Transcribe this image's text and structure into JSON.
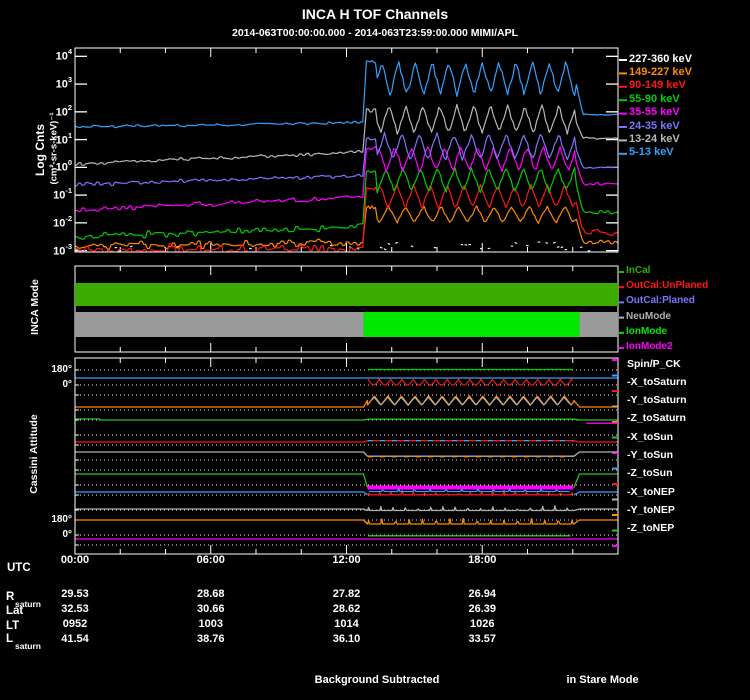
{
  "title": "INCA H TOF Channels",
  "subtitle": "2014-063T00:00:00.000 - 2014-063T23:59:00.000 MIMI/APL",
  "footer": {
    "left": "Background Subtracted",
    "right": "in Stare Mode"
  },
  "utc": {
    "label": "UTC",
    "ticks": [
      "00:00",
      "06:00",
      "12:00",
      "18:00"
    ]
  },
  "table": {
    "rows": [
      {
        "label": "R",
        "sub": "saturn",
        "values": [
          "29.53",
          "28.68",
          "27.82",
          "26.94"
        ]
      },
      {
        "label": "Lat",
        "sub": "",
        "values": [
          "32.53",
          "30.66",
          "28.62",
          "26.39"
        ]
      },
      {
        "label": "LT",
        "sub": "",
        "values": [
          "0952",
          "1003",
          "1014",
          "1026"
        ]
      },
      {
        "label": "L",
        "sub": "saturn",
        "values": [
          "41.54",
          "38.76",
          "36.10",
          "33.57"
        ]
      }
    ]
  },
  "chart_data": {
    "type": "line",
    "title": "INCA H TOF Channels",
    "x": {
      "unit": "hours",
      "range": [
        0,
        24
      ],
      "ticks": [
        0,
        6,
        12,
        18
      ],
      "tick_labels": [
        "00:00",
        "06:00",
        "12:00",
        "18:00"
      ]
    },
    "active_interval_hours": [
      12.75,
      22.1
    ],
    "tof_panel": {
      "ylabel": "Log Cnts",
      "ylabel_units": "(cm²-sr-s-keV)⁻¹",
      "ytick_exponents": [
        4,
        3,
        2,
        1,
        0,
        -1,
        -2,
        -3
      ],
      "ylim_log10": [
        -3.05,
        4.3
      ],
      "series": [
        {
          "label": "227-360 keV",
          "color": "#ffffff",
          "style": "sparse",
          "quiet_log10": [
            -3.0,
            -2.95
          ],
          "onset_log10": -2.8,
          "active_log10": -2.85,
          "active_amp": 0.15,
          "post_log10": -3.0,
          "jitter": 0.12,
          "period_h": 0.75,
          "seed": 11
        },
        {
          "label": "149-227 keV",
          "color": "#ff8a00",
          "style": "line",
          "quiet_log10": [
            -2.85,
            -2.7
          ],
          "onset_log10": -1.45,
          "active_log10": -1.7,
          "active_amp": 0.3,
          "post_log10": -2.7,
          "jitter": 0.17,
          "period_h": 0.78,
          "seed": 22
        },
        {
          "label": "90-149 keV",
          "color": "#ff1515",
          "style": "line",
          "quiet_log10": [
            -3.0,
            -2.9
          ],
          "onset_log10": -0.75,
          "active_log10": -1.05,
          "active_amp": 0.42,
          "post_log10": -2.35,
          "jitter": 0.22,
          "period_h": 0.74,
          "seed": 33
        },
        {
          "label": "55-90 keV",
          "color": "#00cc00",
          "style": "line",
          "quiet_log10": [
            -2.5,
            -2.15
          ],
          "onset_log10": -0.15,
          "active_log10": -0.45,
          "active_amp": 0.42,
          "post_log10": -1.6,
          "jitter": 0.14,
          "period_h": 0.76,
          "seed": 44
        },
        {
          "label": "35-55 keV",
          "color": "#ff00ff",
          "style": "line",
          "quiet_log10": [
            -1.55,
            -1.05
          ],
          "onset_log10": 0.7,
          "active_log10": 0.3,
          "active_amp": 0.45,
          "post_log10": -0.6,
          "jitter": 0.1,
          "period_h": 0.73,
          "seed": 55
        },
        {
          "label": "24-35 keV",
          "color": "#7b74ff",
          "style": "line",
          "quiet_log10": [
            -0.62,
            -0.3
          ],
          "onset_log10": 1.05,
          "active_log10": 0.75,
          "active_amp": 0.48,
          "post_log10": 0.0,
          "jitter": 0.08,
          "period_h": 0.77,
          "seed": 66
        },
        {
          "label": "13-24 keV",
          "color": "#b8b8b8",
          "style": "line",
          "quiet_log10": [
            0.12,
            0.55
          ],
          "onset_log10": 2.05,
          "active_log10": 1.72,
          "active_amp": 0.5,
          "post_log10": 1.05,
          "jitter": 0.07,
          "period_h": 0.75,
          "seed": 77
        },
        {
          "label": "5-13 keV",
          "color": "#33a1ff",
          "style": "line",
          "quiet_log10": [
            1.45,
            1.62
          ],
          "onset_log10": 3.8,
          "active_log10": 3.2,
          "active_amp": 0.6,
          "post_log10": 1.9,
          "jitter": 0.06,
          "period_h": 0.74,
          "seed": 88
        }
      ]
    },
    "mode_panel": {
      "label": "INCA Mode",
      "legend": [
        {
          "label": "InCal",
          "color": "#2fae00"
        },
        {
          "label": "OutCal:UnPlaned",
          "color": "#ff1515"
        },
        {
          "label": "OutCal:Planed",
          "color": "#7b74ff"
        },
        {
          "label": "NeuMode",
          "color": "#b0b0b0"
        },
        {
          "label": "IonMode",
          "color": "#00e800"
        },
        {
          "label": "IonMode2",
          "color": "#ff00ff"
        }
      ],
      "bars": [
        {
          "segments": [
            {
              "t0": 0,
              "t1": 24,
              "color": "#3cab00"
            }
          ]
        },
        {
          "segments": [
            {
              "t0": 0,
              "t1": 12.75,
              "color": "#9a9a9a"
            },
            {
              "t0": 12.75,
              "t1": 22.3,
              "color": "#00e800"
            },
            {
              "t0": 22.3,
              "t1": 24,
              "color": "#9a9a9a"
            }
          ]
        }
      ]
    },
    "attitude_panel": {
      "label": "Cassini Attitude",
      "ytick_labels": [
        "180°",
        "0°",
        "180°",
        "0°"
      ],
      "tick_color_cycle": [
        "#ff00ff",
        "#33a1ff",
        "#ff1515",
        "#b0b0b0",
        "#ff8a00",
        "#2fc02f"
      ],
      "traces": [
        {
          "label": "Spin/P_CK",
          "color": "#33a1ff",
          "quiet": [
            [
              0,
              12.75,
              90
            ]
          ],
          "active": {
            "deg": 90,
            "wave": "flat"
          },
          "extras": [
            {
              "t0": 12.95,
              "t1": 22.0,
              "deg": 80,
              "amp": 60,
              "wave": "scallop",
              "color": "#ff1515",
              "period": 0.5
            },
            {
              "t0": 12.95,
              "t1": 22.0,
              "deg": 175,
              "wave": "flat",
              "color": "#00cc00"
            }
          ],
          "post": [
            [
              22.3,
              24,
              90
            ]
          ]
        },
        {
          "label": "-X_toSaturn",
          "color": "#ff8a00",
          "quiet": [
            [
              0,
              12.75,
              90
            ]
          ],
          "active": {
            "deg": 155,
            "amp": 45,
            "wave": "zigzag",
            "period": 0.6
          },
          "extras": [
            {
              "t0": 13.1,
              "t1": 21.9,
              "deg": 148,
              "amp": 40,
              "wave": "zigzag",
              "color": "#b0b0b0",
              "period": 0.6,
              "phase": 0.3
            }
          ],
          "post": [
            [
              22.3,
              24,
              90
            ]
          ]
        },
        {
          "label": "-Y_toSaturn",
          "color": "#2fc02f",
          "quiet": [
            [
              0,
              1.1,
              160
            ],
            [
              1.1,
              12.75,
              150
            ]
          ],
          "active": {
            "deg": 158,
            "wave": "flat"
          },
          "extras": [
            {
              "t0": 22.6,
              "t1": 24,
              "deg": 118,
              "wave": "flat",
              "color": "#ff00ff"
            }
          ],
          "post": [
            [
              22.3,
              24,
              150
            ]
          ]
        },
        {
          "label": "-Z_toSaturn",
          "color": "#ff1515",
          "quiet": [
            [
              0,
              12.75,
              95
            ]
          ],
          "active": {
            "deg": 108,
            "wave": "flat"
          },
          "extras": [
            {
              "t0": 12.95,
              "t1": 22.0,
              "deg": 108,
              "wave": "flat",
              "color": "#33a1ff",
              "dash": "5 7"
            }
          ],
          "post": [
            [
              22.3,
              24,
              95
            ]
          ]
        },
        {
          "label": "-X_toSun",
          "color": "#b0b0b0",
          "quiet": [
            [
              0,
              12.75,
              120
            ]
          ],
          "active": {
            "deg": 78,
            "wave": "flat"
          },
          "extras": [
            {
              "t0": 12.95,
              "t1": 22.0,
              "deg": 73,
              "wave": "flat",
              "color": "#ff8a00",
              "dash": "5 7"
            }
          ],
          "post": [
            [
              22.3,
              24,
              120
            ]
          ]
        },
        {
          "label": "-Y_toSun",
          "color": "#2fc02f",
          "quiet": [
            [
              0,
              12.75,
              140
            ]
          ],
          "active": {
            "deg": 5,
            "wave": "flat",
            "color": "#ff00ff",
            "width": 4
          },
          "extras": [],
          "post": [
            [
              22.3,
              24,
              140
            ]
          ]
        },
        {
          "label": "-Z_toSun",
          "color": "#33a1ff",
          "quiet": [
            [
              0,
              12.75,
              90
            ]
          ],
          "active": {
            "deg": 62,
            "amp": 55,
            "wave": "spike",
            "color": "#ff1515",
            "period": 0.5
          },
          "extras": [
            {
              "t0": 13.0,
              "t1": 21.9,
              "deg": 95,
              "amp": 35,
              "wave": "spike",
              "color": "#33a1ff",
              "period": 0.7,
              "phase": 0.2
            }
          ],
          "post": [
            [
              22.3,
              24,
              90
            ]
          ]
        },
        {
          "label": "-X_toNEP",
          "color": "#b0b0b0",
          "quiet": [
            [
              0,
              12.75,
              95
            ]
          ],
          "active": {
            "deg": 80,
            "amp": 60,
            "wave": "spike",
            "period": 0.55
          },
          "extras": [],
          "post": [
            [
              22.3,
              24,
              95
            ]
          ]
        },
        {
          "label": "-Y_toNEP",
          "color": "#ff8a00",
          "quiet": [
            [
              0,
              12.75,
              95
            ]
          ],
          "active": {
            "deg": 55,
            "amp": 80,
            "wave": "spike",
            "period": 0.6
          },
          "extras": [],
          "post": [
            [
              22.3,
              24,
              95
            ]
          ]
        },
        {
          "label": "-Z_toNEP",
          "color": "#ff00ff",
          "quiet": [
            [
              0,
              12.75,
              8
            ]
          ],
          "active": {
            "deg": 8,
            "wave": "flat"
          },
          "extras": [
            {
              "t0": 12.95,
              "t1": 21.9,
              "deg": 40,
              "wave": "flat",
              "color": "#2fc02f"
            }
          ],
          "post": [
            [
              22.3,
              24,
              8
            ]
          ]
        }
      ]
    }
  }
}
